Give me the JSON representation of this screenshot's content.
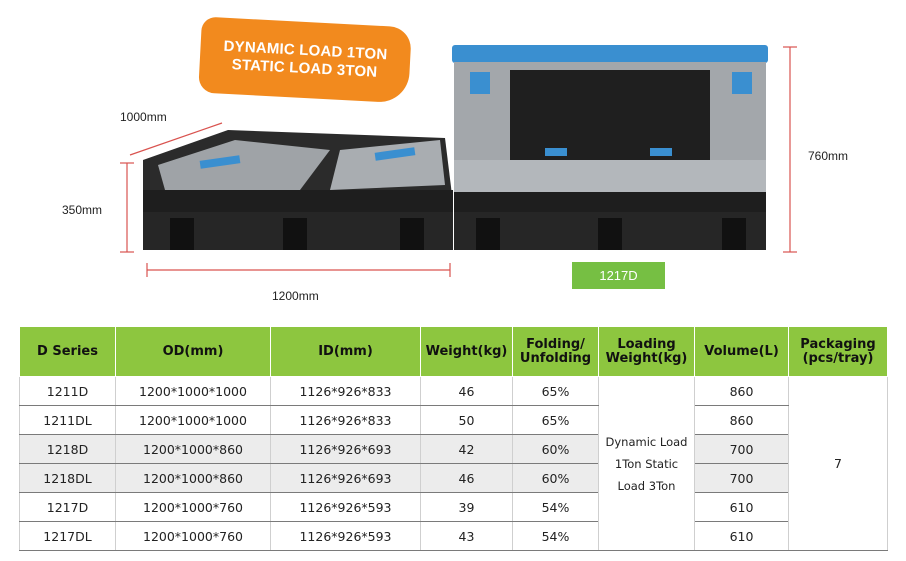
{
  "badge": {
    "line1": "DYNAMIC LOAD 1TON",
    "line2": "STATIC LOAD 3TON"
  },
  "dimensions": {
    "depth": "1000mm",
    "folded_height": "350mm",
    "length": "1200mm",
    "height": "760mm"
  },
  "model_tag": "1217D",
  "table": {
    "headers": {
      "series": "D Series",
      "od": "OD(mm)",
      "id": "ID(mm)",
      "weight": "Weight(kg)",
      "folding_l1": "Folding/",
      "folding_l2": "Unfolding",
      "loading_l1": "Loading",
      "loading_l2": "Weight(kg)",
      "volume": "Volume(L)",
      "packaging_l1": "Packaging",
      "packaging_l2": "(pcs/tray)"
    },
    "rows": [
      {
        "model": "1211D",
        "od": "1200*1000*1000",
        "id": "1126*926*833",
        "weight": "46",
        "folding": "65%",
        "volume": "860"
      },
      {
        "model": "1211DL",
        "od": "1200*1000*1000",
        "id": "1126*926*833",
        "weight": "50",
        "folding": "65%",
        "volume": "860"
      },
      {
        "model": "1218D",
        "od": "1200*1000*860",
        "id": "1126*926*693",
        "weight": "42",
        "folding": "60%",
        "volume": "700"
      },
      {
        "model": "1218DL",
        "od": "1200*1000*860",
        "id": "1126*926*693",
        "weight": "46",
        "folding": "60%",
        "volume": "700"
      },
      {
        "model": "1217D",
        "od": "1200*1000*760",
        "id": "1126*926*593",
        "weight": "39",
        "folding": "54%",
        "volume": "610"
      },
      {
        "model": "1217DL",
        "od": "1200*1000*760",
        "id": "1126*926*593",
        "weight": "43",
        "folding": "54%",
        "volume": "610"
      }
    ],
    "loading_weight": {
      "line1": "Dynamic Load",
      "line2": "1Ton Static",
      "line3": "Load 3Ton"
    },
    "packaging": "7"
  },
  "colors": {
    "header_green": "#8dc63f",
    "badge_orange": "#f28a1e",
    "tag_green": "#76bf43",
    "lid_blue": "#3a8fd0",
    "dimension_red": "#d9534f"
  }
}
